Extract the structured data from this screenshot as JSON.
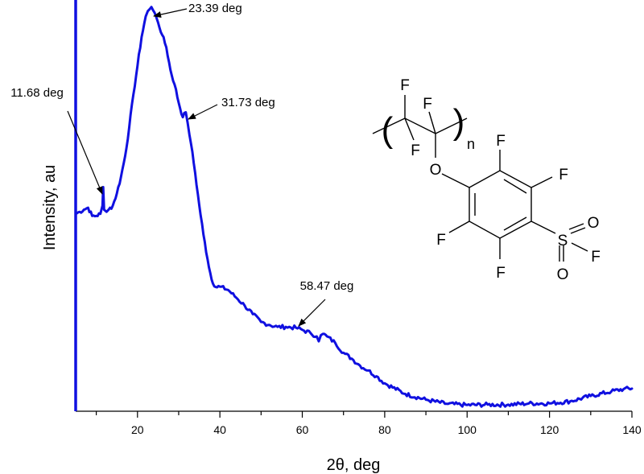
{
  "chart_data": {
    "type": "line",
    "title": "",
    "xlabel": "2θ, deg",
    "ylabel": "Intensity, au",
    "xlim": [
      5,
      140
    ],
    "ylim": [
      0,
      100
    ],
    "x_ticks": [
      20,
      40,
      60,
      80,
      100,
      120,
      140
    ],
    "x_tick_labels": [
      "20",
      "40",
      "60",
      "80",
      "100",
      "120",
      "140"
    ],
    "grid": false,
    "legend": "none",
    "colors": {
      "series": "#1010e0",
      "axis": "#1010e0"
    },
    "series": [
      {
        "x": [
          5,
          6,
          7,
          8,
          9,
          10,
          11,
          11.5,
          11.68,
          11.9,
          12.5,
          13,
          14,
          15,
          16,
          17,
          18,
          19,
          20,
          21,
          22,
          22.5,
          23,
          23.39,
          23.8,
          24.5,
          25,
          26,
          27,
          28,
          29,
          30,
          31,
          31.73,
          32.2,
          33,
          34,
          35,
          36,
          37,
          38,
          39,
          40,
          42,
          44,
          46,
          48,
          50,
          52,
          54,
          56,
          58.47,
          60,
          62,
          63.5,
          64,
          64.5,
          65,
          66,
          68,
          70,
          72,
          74,
          76,
          78,
          80,
          85,
          90,
          95,
          100,
          105,
          110,
          115,
          120,
          125,
          130,
          135,
          138,
          140
        ],
        "y": [
          48,
          48.5,
          49,
          49.5,
          47.5,
          47.5,
          48,
          50,
          54.5,
          49,
          48.5,
          49,
          50,
          53,
          57,
          62,
          69,
          77,
          84,
          91,
          96,
          97.3,
          97.8,
          98.3,
          97.5,
          96,
          94.5,
          91.5,
          88.5,
          83,
          79.5,
          75,
          71.5,
          72.7,
          70,
          65,
          58,
          50,
          43,
          37,
          32,
          30.2,
          30.3,
          29.5,
          27.6,
          25.7,
          23.6,
          21.7,
          21,
          20.5,
          20.5,
          20.3,
          19.8,
          19,
          18.2,
          17,
          18.5,
          18.8,
          18.2,
          16.6,
          14.2,
          12.8,
          11.1,
          9.9,
          8.5,
          6.8,
          4.2,
          2.8,
          1.8,
          1.5,
          1.6,
          1.6,
          1.9,
          1.9,
          2.4,
          3.7,
          4.8,
          5.4,
          5.5
        ]
      }
    ],
    "annotations": [
      {
        "text": "11.68 deg",
        "x": 11.68,
        "y": 54.5
      },
      {
        "text": "23.39 deg",
        "x": 23.39,
        "y": 98.3
      },
      {
        "text": "31.73 deg",
        "x": 31.73,
        "y": 72.7
      },
      {
        "text": "58.47 deg",
        "x": 58.47,
        "y": 20.3
      }
    ]
  },
  "structure": {
    "atoms": {
      "f1": "F",
      "f2": "F",
      "f3": "F",
      "o1": "O",
      "f4": "F",
      "f5": "F",
      "f6": "F",
      "f7": "F",
      "s1": "S",
      "o2": "O",
      "o3": "O",
      "f8": "F"
    },
    "subscript": "n",
    "paren_open": "(",
    "paren_close": ")"
  }
}
